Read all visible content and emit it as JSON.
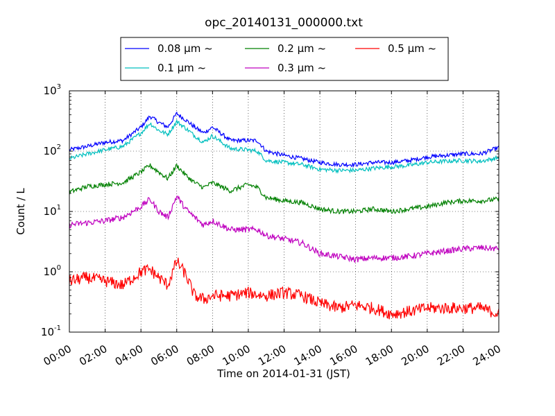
{
  "chart_data": {
    "type": "line",
    "title": "opc_20140131_000000.txt",
    "xlabel": "Time on 2014-01-31 (JST)",
    "ylabel": "Count / L",
    "y_scale": "log",
    "xlim": [
      "00:00",
      "24:00"
    ],
    "ylim": [
      0.1,
      1000
    ],
    "x_ticks": [
      "00:00",
      "02:00",
      "04:00",
      "06:00",
      "08:00",
      "10:00",
      "12:00",
      "14:00",
      "16:00",
      "18:00",
      "20:00",
      "22:00",
      "24:00"
    ],
    "y_ticks": [
      {
        "value": 0.1,
        "base": "10",
        "exp": "-1"
      },
      {
        "value": 1,
        "base": "10",
        "exp": "0"
      },
      {
        "value": 10,
        "base": "10",
        "exp": "1"
      },
      {
        "value": 100,
        "base": "10",
        "exp": "2"
      },
      {
        "value": 1000,
        "base": "10",
        "exp": "3"
      }
    ],
    "grid": true,
    "legend_position": "top-center",
    "legend_columns": 3,
    "x": [
      "00:00",
      "01:00",
      "02:00",
      "03:00",
      "04:00",
      "04:30",
      "05:00",
      "05:30",
      "06:00",
      "06:30",
      "07:00",
      "07:30",
      "08:00",
      "09:00",
      "10:00",
      "10:30",
      "11:00",
      "12:00",
      "13:00",
      "14:00",
      "15:00",
      "16:00",
      "17:00",
      "18:00",
      "19:00",
      "20:00",
      "21:00",
      "22:00",
      "23:00",
      "24:00"
    ],
    "series": [
      {
        "name": "0.08 μm ~",
        "color": "#0000ff",
        "values": [
          105,
          120,
          140,
          150,
          250,
          380,
          300,
          250,
          420,
          330,
          250,
          200,
          250,
          150,
          150,
          150,
          100,
          85,
          75,
          65,
          60,
          60,
          65,
          65,
          70,
          80,
          85,
          90,
          90,
          115
        ]
      },
      {
        "name": "0.1 μm ~",
        "color": "#00bfbf",
        "values": [
          75,
          90,
          105,
          120,
          200,
          290,
          220,
          190,
          310,
          240,
          180,
          140,
          180,
          110,
          105,
          100,
          70,
          65,
          60,
          50,
          48,
          48,
          52,
          55,
          58,
          65,
          68,
          70,
          68,
          78
        ]
      },
      {
        "name": "0.2 μm ~",
        "color": "#008000",
        "values": [
          21,
          26,
          28,
          30,
          45,
          58,
          45,
          35,
          58,
          40,
          30,
          25,
          30,
          22,
          28,
          25,
          17,
          15,
          14,
          11,
          10,
          10,
          11,
          10,
          11,
          12,
          14,
          15,
          15,
          16
        ]
      },
      {
        "name": "0.3 μm ~",
        "color": "#bf00bf",
        "values": [
          6,
          6.5,
          7,
          8,
          12,
          16,
          10,
          8,
          18,
          11,
          8,
          6,
          7,
          5,
          5,
          5,
          4,
          3.5,
          3,
          2,
          1.8,
          1.6,
          1.7,
          1.7,
          1.8,
          2,
          2.2,
          2.4,
          2.5,
          2.4
        ]
      },
      {
        "name": "0.5 μm ~",
        "color": "#ff0000",
        "values": [
          0.7,
          0.8,
          0.7,
          0.6,
          1.0,
          1.1,
          0.8,
          0.6,
          1.5,
          0.9,
          0.4,
          0.35,
          0.4,
          0.4,
          0.45,
          0.42,
          0.4,
          0.45,
          0.4,
          0.3,
          0.25,
          0.28,
          0.25,
          0.2,
          0.22,
          0.25,
          0.25,
          0.25,
          0.25,
          0.2
        ]
      }
    ]
  }
}
